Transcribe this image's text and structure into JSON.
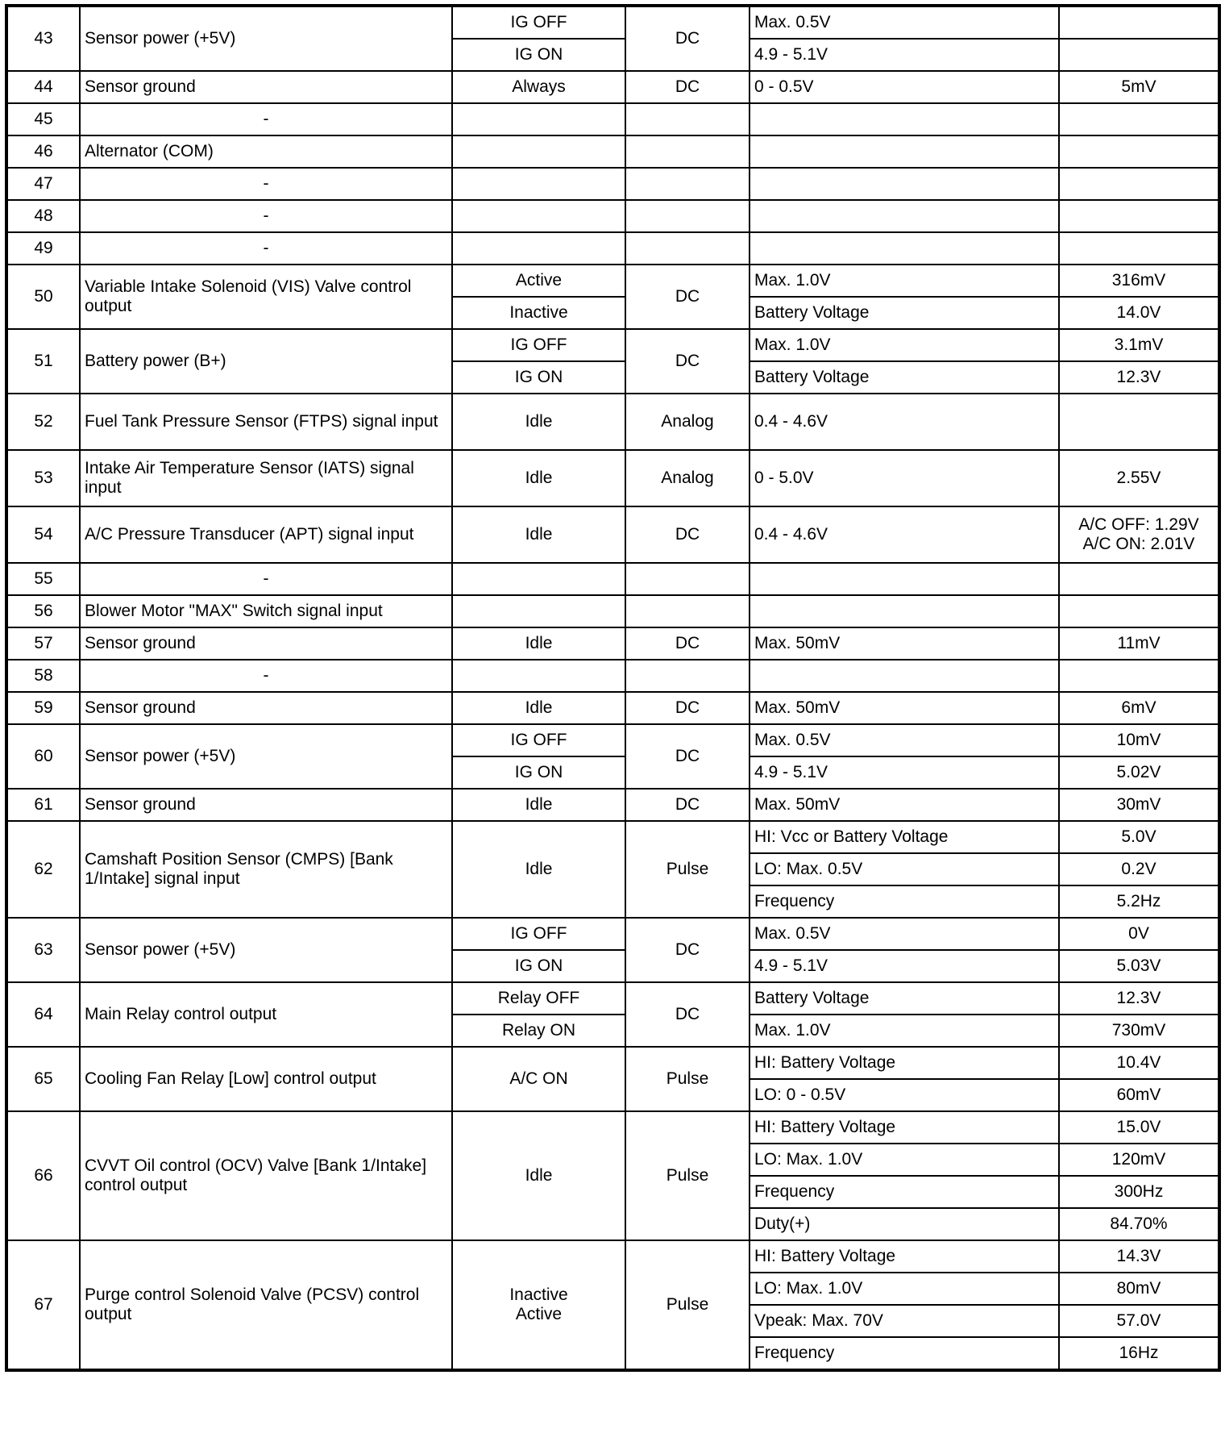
{
  "pins": [
    {
      "num": "43",
      "desc": "Sensor power (+5V)",
      "conds": [
        "IG OFF",
        "IG ON"
      ],
      "type": "DC",
      "levels": [
        [
          "Max. 0.5V",
          ""
        ],
        [
          "4.9 - 5.1V",
          ""
        ]
      ]
    },
    {
      "num": "44",
      "desc": "Sensor ground",
      "conds": [
        "Always"
      ],
      "type": "DC",
      "levels": [
        [
          "0 - 0.5V",
          "5mV"
        ]
      ]
    },
    {
      "num": "45",
      "desc": "-",
      "conds": [
        ""
      ],
      "type": "",
      "levels": [
        [
          "",
          ""
        ]
      ]
    },
    {
      "num": "46",
      "desc": "Alternator (COM)",
      "conds": [
        ""
      ],
      "type": "",
      "levels": [
        [
          "",
          ""
        ]
      ]
    },
    {
      "num": "47",
      "desc": "-",
      "conds": [
        ""
      ],
      "type": "",
      "levels": [
        [
          "",
          ""
        ]
      ]
    },
    {
      "num": "48",
      "desc": "-",
      "conds": [
        ""
      ],
      "type": "",
      "levels": [
        [
          "",
          ""
        ]
      ]
    },
    {
      "num": "49",
      "desc": "-",
      "conds": [
        ""
      ],
      "type": "",
      "levels": [
        [
          "",
          ""
        ]
      ]
    },
    {
      "num": "50",
      "desc": "Variable Intake Solenoid (VIS) Valve control output",
      "conds": [
        "Active",
        "Inactive"
      ],
      "type": "DC",
      "levels": [
        [
          "Max. 1.0V",
          "316mV"
        ],
        [
          "Battery Voltage",
          "14.0V"
        ]
      ]
    },
    {
      "num": "51",
      "desc": "Battery power (B+)",
      "conds": [
        "IG OFF",
        "IG ON"
      ],
      "type": "DC",
      "levels": [
        [
          "Max. 1.0V",
          "3.1mV"
        ],
        [
          "Battery Voltage",
          "12.3V"
        ]
      ]
    },
    {
      "num": "52",
      "desc": "Fuel Tank Pressure Sensor (FTPS) signal input",
      "conds": [
        "Idle"
      ],
      "type": "Analog",
      "levels": [
        [
          "0.4 - 4.6V",
          ""
        ]
      ],
      "tall": true
    },
    {
      "num": "53",
      "desc": "Intake Air Temperature Sensor (IATS) signal input",
      "conds": [
        "Idle"
      ],
      "type": "Analog",
      "levels": [
        [
          "0 - 5.0V",
          "2.55V"
        ]
      ],
      "tall": true
    },
    {
      "num": "54",
      "desc": "A/C Pressure Transducer (APT) signal input",
      "conds": [
        "Idle"
      ],
      "type": "DC",
      "levels": [
        [
          "0.4 - 4.6V",
          "A/C OFF: 1.29V\nA/C ON: 2.01V"
        ]
      ],
      "tall": true
    },
    {
      "num": "55",
      "desc": "-",
      "conds": [
        ""
      ],
      "type": "",
      "levels": [
        [
          "",
          ""
        ]
      ]
    },
    {
      "num": "56",
      "desc": "Blower Motor \"MAX\" Switch signal input",
      "conds": [
        ""
      ],
      "type": "",
      "levels": [
        [
          "",
          ""
        ]
      ]
    },
    {
      "num": "57",
      "desc": "Sensor ground",
      "conds": [
        "Idle"
      ],
      "type": "DC",
      "levels": [
        [
          "Max. 50mV",
          "11mV"
        ]
      ]
    },
    {
      "num": "58",
      "desc": "-",
      "conds": [
        ""
      ],
      "type": "",
      "levels": [
        [
          "",
          ""
        ]
      ]
    },
    {
      "num": "59",
      "desc": "Sensor ground",
      "conds": [
        "Idle"
      ],
      "type": "DC",
      "levels": [
        [
          "Max. 50mV",
          "6mV"
        ]
      ]
    },
    {
      "num": "60",
      "desc": "Sensor power (+5V)",
      "conds": [
        "IG OFF",
        "IG ON"
      ],
      "type": "DC",
      "levels": [
        [
          "Max. 0.5V",
          "10mV"
        ],
        [
          "4.9 - 5.1V",
          "5.02V"
        ]
      ]
    },
    {
      "num": "61",
      "desc": "Sensor ground",
      "conds": [
        "Idle"
      ],
      "type": "DC",
      "levels": [
        [
          "Max. 50mV",
          "30mV"
        ]
      ]
    },
    {
      "num": "62",
      "desc": "Camshaft Position Sensor (CMPS) [Bank 1/Intake] signal input",
      "conds": [
        "Idle"
      ],
      "type": "Pulse",
      "levels": [
        [
          "HI: Vcc or Battery Voltage",
          "5.0V"
        ],
        [
          "LO: Max. 0.5V",
          "0.2V"
        ],
        [
          "Frequency",
          "5.2Hz"
        ]
      ]
    },
    {
      "num": "63",
      "desc": "Sensor power (+5V)",
      "conds": [
        "IG OFF",
        "IG ON"
      ],
      "type": "DC",
      "levels": [
        [
          "Max. 0.5V",
          "0V"
        ],
        [
          "4.9 - 5.1V",
          "5.03V"
        ]
      ]
    },
    {
      "num": "64",
      "desc": "Main Relay control output",
      "conds": [
        "Relay OFF",
        "Relay ON"
      ],
      "type": "DC",
      "levels": [
        [
          "Battery Voltage",
          "12.3V"
        ],
        [
          "Max. 1.0V",
          "730mV"
        ]
      ]
    },
    {
      "num": "65",
      "desc": "Cooling Fan Relay [Low] control output",
      "conds": [
        "A/C ON"
      ],
      "type": "Pulse",
      "levels": [
        [
          "HI: Battery Voltage",
          "10.4V"
        ],
        [
          "LO: 0 - 0.5V",
          "60mV"
        ]
      ]
    },
    {
      "num": "66",
      "desc": "CVVT Oil control (OCV) Valve [Bank 1/Intake] control output",
      "conds": [
        "Idle"
      ],
      "type": "Pulse",
      "levels": [
        [
          "HI: Battery Voltage",
          "15.0V"
        ],
        [
          "LO: Max. 1.0V",
          "120mV"
        ],
        [
          "Frequency",
          "300Hz"
        ],
        [
          "Duty(+)",
          "84.70%"
        ]
      ]
    },
    {
      "num": "67",
      "desc": "Purge control Solenoid Valve (PCSV) control output",
      "conds": [
        "Inactive\nActive"
      ],
      "type": "Pulse",
      "levels": [
        [
          "HI: Battery Voltage",
          "14.3V"
        ],
        [
          "LO: Max. 1.0V",
          "80mV"
        ],
        [
          "Vpeak: Max. 70V",
          "57.0V"
        ],
        [
          "Frequency",
          "16Hz"
        ]
      ]
    }
  ]
}
